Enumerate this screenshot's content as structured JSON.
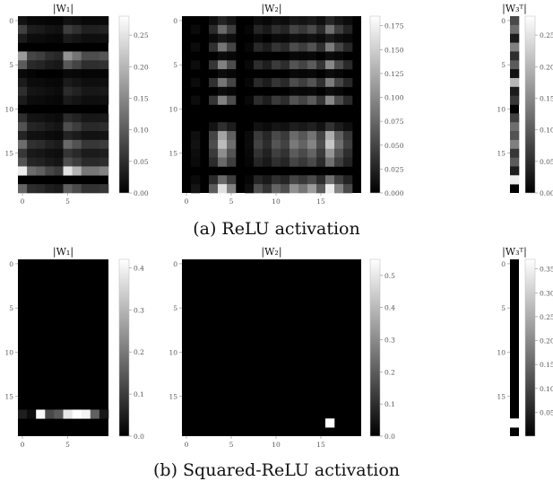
{
  "captions": {
    "a": "(a) ReLU activation",
    "b": "(b) Squared-ReLU activation"
  },
  "chart_data": [
    {
      "type": "heatmap",
      "panel": "a",
      "title": "|W₁|",
      "colormap": "gray",
      "rows": 20,
      "cols": 10,
      "vmax": 0.28,
      "colorbar_ticks": [
        0.0,
        0.05,
        0.1,
        0.15,
        0.2,
        0.25
      ],
      "colorbar_labels": [
        "0.00",
        "0.05",
        "0.10",
        "0.15",
        "0.20",
        "0.25"
      ],
      "xticks": [
        0,
        5
      ],
      "yticks": [
        0,
        5,
        10,
        15
      ],
      "row_weights": [
        0.02,
        0.07,
        0.03,
        0.0,
        0.17,
        0.1,
        0.01,
        0.03,
        0.05,
        0.03,
        0.0,
        0.05,
        0.09,
        0.04,
        0.12,
        0.06,
        0.09,
        0.26,
        0.0,
        0.11
      ],
      "col_weights": [
        1.0,
        0.45,
        0.4,
        0.3,
        0.25,
        0.95,
        0.75,
        0.5,
        0.5,
        0.55
      ]
    },
    {
      "type": "heatmap",
      "panel": "a",
      "title": "|W₂|",
      "colormap": "gray",
      "rows": 20,
      "cols": 20,
      "vmax": 0.185,
      "colorbar_ticks": [
        0.0,
        0.025,
        0.05,
        0.075,
        0.1,
        0.125,
        0.15,
        0.175
      ],
      "colorbar_labels": [
        "0.000",
        "0.025",
        "0.050",
        "0.075",
        "0.100",
        "0.125",
        "0.150",
        "0.175"
      ],
      "xticks": [
        0,
        5,
        10,
        15
      ],
      "yticks": [
        0,
        5,
        10,
        15
      ],
      "row_weights": [
        0.03,
        0.09,
        0.02,
        0.1,
        0.01,
        0.11,
        0.01,
        0.1,
        0.01,
        0.11,
        0.0,
        0.0,
        0.04,
        0.14,
        0.16,
        0.12,
        0.09,
        0.0,
        0.09,
        0.19
      ],
      "col_weights": [
        0.0,
        0.08,
        0.0,
        0.35,
        0.85,
        0.5,
        0.0,
        0.05,
        0.3,
        0.2,
        0.38,
        0.3,
        0.55,
        0.45,
        0.6,
        0.35,
        0.9,
        0.5,
        0.28,
        0.0
      ]
    },
    {
      "type": "heatmap",
      "panel": "a",
      "title": "|W₃ᵀ|",
      "colormap": "gray",
      "rows": 20,
      "cols": 1,
      "vmax": 0.28,
      "colorbar_ticks": [
        0.0,
        0.05,
        0.1,
        0.15,
        0.2,
        0.25
      ],
      "colorbar_labels": [
        "0.00",
        "0.05",
        "0.10",
        "0.15",
        "0.20",
        "0.25"
      ],
      "xticks": [],
      "yticks": [
        0,
        5,
        10,
        15
      ],
      "values": [
        0.08,
        0.12,
        0.03,
        0.14,
        0.05,
        0.1,
        0.02,
        0.2,
        0.03,
        0.06,
        0.0,
        0.07,
        0.12,
        0.09,
        0.14,
        0.06,
        0.1,
        0.03,
        0.26,
        0.0
      ]
    },
    {
      "type": "heatmap",
      "panel": "b",
      "title": "|W₁|",
      "colormap": "gray",
      "rows": 20,
      "cols": 10,
      "vmax": 0.42,
      "colorbar_ticks": [
        0.0,
        0.1,
        0.2,
        0.3,
        0.4
      ],
      "colorbar_labels": [
        "0.0",
        "0.1",
        "0.2",
        "0.3",
        "0.4"
      ],
      "xticks": [
        0,
        5
      ],
      "yticks": [
        0,
        5,
        10,
        15
      ],
      "sparse_cells": [
        {
          "row": 17,
          "col": 0,
          "value": 0.05
        },
        {
          "row": 17,
          "col": 1,
          "value": 0.02
        },
        {
          "row": 17,
          "col": 2,
          "value": 0.41
        },
        {
          "row": 17,
          "col": 3,
          "value": 0.12
        },
        {
          "row": 17,
          "col": 4,
          "value": 0.15
        },
        {
          "row": 17,
          "col": 5,
          "value": 0.38
        },
        {
          "row": 17,
          "col": 6,
          "value": 0.42
        },
        {
          "row": 17,
          "col": 7,
          "value": 0.4
        },
        {
          "row": 17,
          "col": 8,
          "value": 0.16
        },
        {
          "row": 17,
          "col": 9,
          "value": 0.04
        }
      ]
    },
    {
      "type": "heatmap",
      "panel": "b",
      "title": "|W₂|",
      "colormap": "gray",
      "rows": 20,
      "cols": 20,
      "vmax": 0.55,
      "colorbar_ticks": [
        0.0,
        0.1,
        0.2,
        0.3,
        0.4,
        0.5
      ],
      "colorbar_labels": [
        "0.0",
        "0.1",
        "0.2",
        "0.3",
        "0.4",
        "0.5"
      ],
      "xticks": [
        0,
        5,
        10,
        15
      ],
      "yticks": [
        0,
        5,
        10,
        15
      ],
      "sparse_cells": [
        {
          "row": 18,
          "col": 16,
          "value": 0.55
        }
      ]
    },
    {
      "type": "heatmap",
      "panel": "b",
      "title": "|W₃ᵀ|",
      "colormap": "gray",
      "rows": 20,
      "cols": 1,
      "vmax": 0.37,
      "colorbar_ticks": [
        0.05,
        0.1,
        0.15,
        0.2,
        0.25,
        0.3,
        0.35
      ],
      "colorbar_labels": [
        "0.05",
        "0.10",
        "0.15",
        "0.20",
        "0.25",
        "0.30",
        "0.35"
      ],
      "xticks": [],
      "yticks": [
        0,
        5,
        10,
        15
      ],
      "sparse_cells": [
        {
          "row": 18,
          "col": 0,
          "value": 0.37
        }
      ]
    }
  ]
}
